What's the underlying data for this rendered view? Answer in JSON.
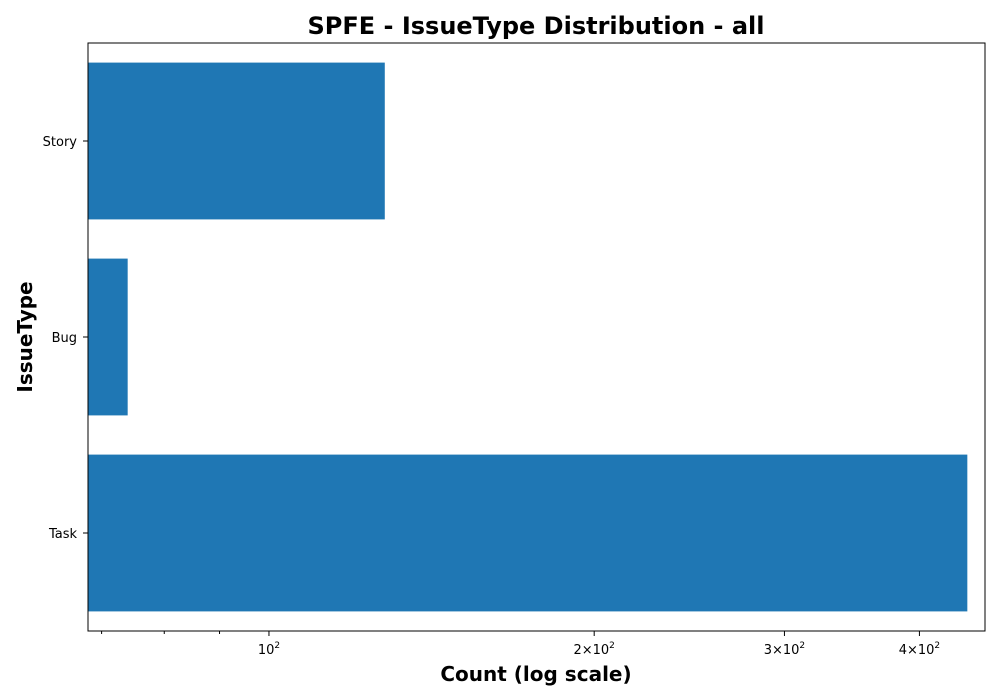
{
  "colors": {
    "bar": "#1f77b4",
    "axis": "#000000",
    "background": "#ffffff"
  },
  "chart_data": {
    "type": "bar",
    "orientation": "horizontal",
    "title": "SPFE - IssueType Distribution - all",
    "xlabel": "Count (log scale)",
    "ylabel": "IssueType",
    "x_scale": "log",
    "xlim": [
      68,
      460
    ],
    "grid": false,
    "categories": [
      "Task",
      "Bug",
      "Story"
    ],
    "values": [
      443,
      74,
      128
    ],
    "x_ticks": [
      {
        "value": 100,
        "mantissa": "",
        "base": "10",
        "exp": "2"
      },
      {
        "value": 200,
        "mantissa": "2×",
        "base": "10",
        "exp": "2"
      },
      {
        "value": 300,
        "mantissa": "3×",
        "base": "10",
        "exp": "2"
      },
      {
        "value": 400,
        "mantissa": "4×",
        "base": "10",
        "exp": "2"
      }
    ],
    "x_minor_ticks": [
      70,
      80,
      90
    ]
  }
}
